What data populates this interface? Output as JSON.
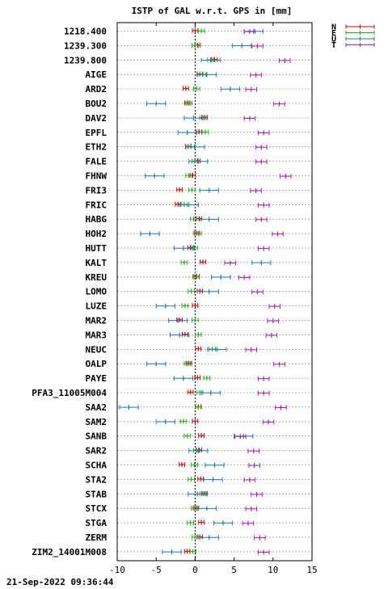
{
  "chart_data": {
    "type": "scatter",
    "title": "ISTP of GAL w.r.t. GPS in [mm]",
    "xlabel": "",
    "ylabel": "",
    "xlim": [
      -10,
      15
    ],
    "xticks": [
      -10,
      -5,
      0,
      5,
      10,
      15
    ],
    "grid": true,
    "legend_position": "top-right",
    "timestamp": "21-Sep-2022 09:36:44",
    "series": [
      {
        "name": "N",
        "color": "#cc0000"
      },
      {
        "name": "E",
        "color": "#22aa22"
      },
      {
        "name": "U",
        "color": "#1f77b4"
      },
      {
        "name": "T",
        "color": "#aa22aa"
      }
    ],
    "stations": [
      {
        "name": "1218.400",
        "N": 0.0,
        "E": 0.8,
        "U": 7.5,
        "T": 7.0
      },
      {
        "name": "1239.300",
        "N": 0.3,
        "E": 0.0,
        "U": 6.0,
        "T": 8.0
      },
      {
        "name": "1239.800",
        "N": 2.5,
        "E": 2.0,
        "U": 2.0,
        "T": 11.5
      },
      {
        "name": "AIGE",
        "N": 0.6,
        "E": 1.0,
        "U": 1.5,
        "T": 7.8
      },
      {
        "name": "ARD2",
        "N": -1.2,
        "E": 0.2,
        "U": 4.5,
        "T": 7.2
      },
      {
        "name": "BOU2",
        "N": -1.0,
        "E": -0.8,
        "U": -5.0,
        "T": 10.8
      },
      {
        "name": "DAV2",
        "N": 1.2,
        "E": 1.0,
        "U": -0.2,
        "T": 7.0
      },
      {
        "name": "EPFL",
        "N": 0.5,
        "E": 1.3,
        "U": -1.0,
        "T": 8.8
      },
      {
        "name": "ETH2",
        "N": -0.9,
        "E": -0.5,
        "U": 0.0,
        "T": 8.5
      },
      {
        "name": "FALE",
        "N": 0.3,
        "E": 0.0,
        "U": 0.4,
        "T": 8.5
      },
      {
        "name": "FHNW",
        "N": -0.3,
        "E": -0.8,
        "U": -5.2,
        "T": 11.6
      },
      {
        "name": "FRI3",
        "N": -2.0,
        "E": -0.4,
        "U": 1.8,
        "T": 7.8
      },
      {
        "name": "FRIC",
        "N": -2.2,
        "E": -1.4,
        "U": -0.8,
        "T": 8.8
      },
      {
        "name": "HABG",
        "N": 0.5,
        "E": -0.2,
        "U": 1.8,
        "T": 8.5
      },
      {
        "name": "HOH2",
        "N": 0.2,
        "E": 0.4,
        "U": -5.8,
        "T": 10.6
      },
      {
        "name": "HUTT",
        "N": -0.6,
        "E": -0.1,
        "U": -1.5,
        "T": 8.8
      },
      {
        "name": "KALT",
        "N": 1.0,
        "E": -1.4,
        "U": 8.5,
        "T": 4.5
      },
      {
        "name": "KREU",
        "N": 0.2,
        "E": 0.1,
        "U": 3.3,
        "T": 6.3
      },
      {
        "name": "LOMO",
        "N": 0.6,
        "E": -0.5,
        "U": 1.8,
        "T": 8.0
      },
      {
        "name": "LUZE",
        "N": 0.0,
        "E": -1.3,
        "U": -3.8,
        "T": 10.2
      },
      {
        "name": "MAR2",
        "N": -2.0,
        "E": 0.0,
        "U": -2.2,
        "T": 10.0
      },
      {
        "name": "MAR3",
        "N": -1.3,
        "E": 0.4,
        "U": -2.0,
        "T": 9.8
      },
      {
        "name": "NEUC",
        "N": 0.4,
        "E": 2.2,
        "U": 2.8,
        "T": 7.2
      },
      {
        "name": "OALP",
        "N": -0.8,
        "E": -1.0,
        "U": -5.0,
        "T": 10.8
      },
      {
        "name": "PAYE",
        "N": 0.3,
        "E": 1.5,
        "U": -1.5,
        "T": 8.8
      },
      {
        "name": "PFA3_11005M004",
        "N": -0.6,
        "E": 0.6,
        "U": 2.0,
        "T": 8.8
      },
      {
        "name": "SAA2",
        "N": 0.4,
        "E": 0.4,
        "U": -8.5,
        "T": 11.0
      },
      {
        "name": "SAM2",
        "N": 0.0,
        "E": -1.5,
        "U": -3.8,
        "T": 9.4
      },
      {
        "name": "SANB",
        "N": 0.8,
        "E": -1.0,
        "U": 6.2,
        "T": 5.8
      },
      {
        "name": "SAR2",
        "N": 0.5,
        "E": 0.2,
        "U": 0.4,
        "T": 7.5
      },
      {
        "name": "SCHA",
        "N": -1.7,
        "E": -0.1,
        "U": 2.5,
        "T": 7.6
      },
      {
        "name": "STA2",
        "N": 0.7,
        "E": -0.5,
        "U": 2.3,
        "T": 7.0
      },
      {
        "name": "STAB",
        "N": 1.2,
        "E": 1.0,
        "U": 0.3,
        "T": 7.9
      },
      {
        "name": "STCX",
        "N": 0.1,
        "E": -0.1,
        "U": 1.5,
        "T": 7.2
      },
      {
        "name": "STGA",
        "N": 0.8,
        "E": -0.6,
        "U": 3.6,
        "T": 6.8
      },
      {
        "name": "ZERM",
        "N": 0.6,
        "E": 0.0,
        "U": 1.8,
        "T": 8.3
      },
      {
        "name": "ZIM2_14001M008",
        "N": -1.0,
        "E": -0.3,
        "U": -3.0,
        "T": 8.8
      }
    ]
  }
}
